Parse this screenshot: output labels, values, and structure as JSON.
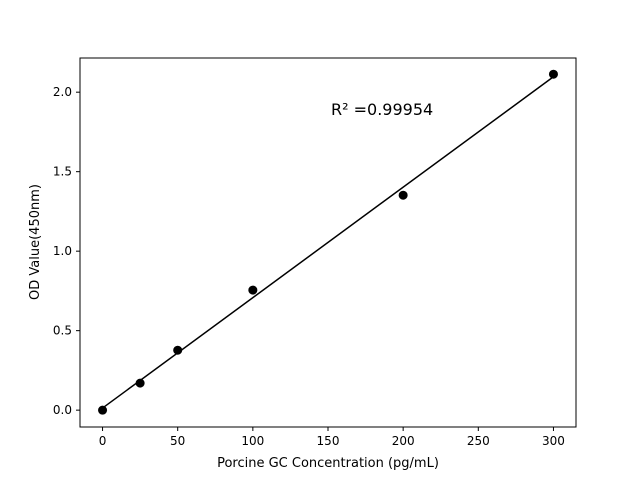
{
  "chart_data": {
    "type": "scatter",
    "title": "",
    "xlabel": "Porcine GC Concentration (pg/mL)",
    "ylabel": "OD Value(450nm)",
    "xlim": [
      -15,
      315
    ],
    "ylim": [
      -0.106,
      2.215
    ],
    "xticks": [
      0,
      50,
      100,
      150,
      200,
      250,
      300
    ],
    "xtick_labels": [
      "0",
      "50",
      "100",
      "150",
      "200",
      "250",
      "300"
    ],
    "yticks": [
      0.0,
      0.5,
      1.0,
      1.5,
      2.0
    ],
    "ytick_labels": [
      "0.0",
      "0.5",
      "1.0",
      "1.5",
      "2.0"
    ],
    "grid": false,
    "points": {
      "x": [
        0,
        25,
        50,
        100,
        200,
        300
      ],
      "y": [
        0.0,
        0.17,
        0.377,
        0.755,
        1.352,
        2.113
      ]
    },
    "fit_line": {
      "x": [
        0,
        300
      ],
      "y": [
        0.013,
        2.097
      ]
    },
    "annotation": {
      "text": "R² =0.99954",
      "x": 150,
      "y": 1.9
    },
    "colors": {
      "points": "#000000",
      "line": "#000000"
    }
  }
}
